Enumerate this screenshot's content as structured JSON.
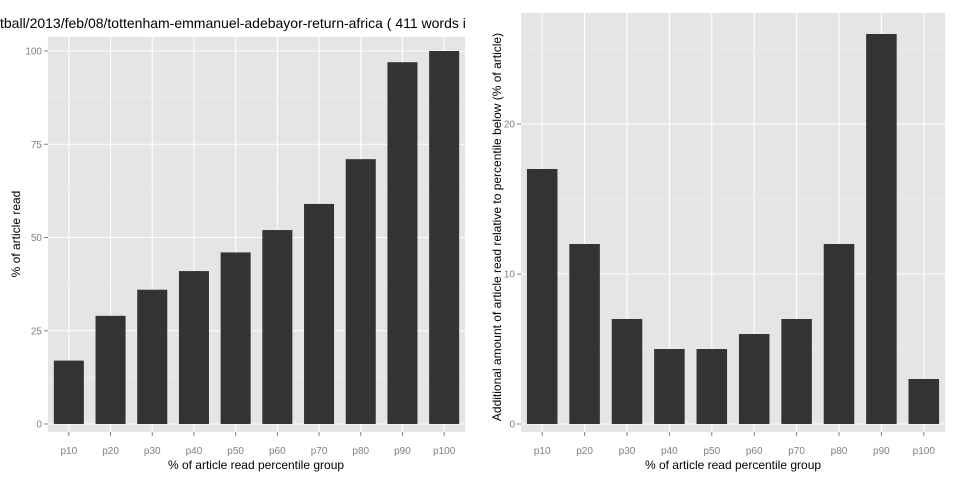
{
  "charts": [
    {
      "title": "tball/2013/feb/08/tottenham-emmanuel-adebayor-return-africa ( 411 words i",
      "xlabel": "% of article read percentile group",
      "ylabel": "% of article read",
      "panel_bg": "#e5e5e5",
      "bar_color": "#333333"
    },
    {
      "title": "",
      "xlabel": "% of article read percentile group",
      "ylabel": "Additional amount of article read relative to percentile below (% of article)",
      "panel_bg": "#e5e5e5",
      "bar_color": "#333333"
    }
  ],
  "chart_data": [
    {
      "type": "bar",
      "title": "tball/2013/feb/08/tottenham-emmanuel-adebayor-return-africa ( 411 words i",
      "xlabel": "% of article read percentile group",
      "ylabel": "% of article read",
      "categories": [
        "p10",
        "p20",
        "p30",
        "p40",
        "p50",
        "p60",
        "p70",
        "p80",
        "p90",
        "p100"
      ],
      "values": [
        17,
        29,
        36,
        41,
        46,
        52,
        59,
        71,
        97,
        100
      ],
      "ylim": [
        0,
        105
      ],
      "yticks": [
        0,
        25,
        50,
        75,
        100
      ],
      "grid": true
    },
    {
      "type": "bar",
      "title": "",
      "xlabel": "% of article read percentile group",
      "ylabel": "Additional amount of article read relative to percentile below (% of article)",
      "categories": [
        "p10",
        "p20",
        "p30",
        "p40",
        "p50",
        "p60",
        "p70",
        "p80",
        "p90",
        "p100"
      ],
      "values": [
        17,
        12,
        7,
        5,
        5,
        6,
        7,
        12,
        26,
        3
      ],
      "ylim": [
        0,
        27
      ],
      "yticks": [
        0,
        10,
        20
      ],
      "grid": true
    }
  ]
}
